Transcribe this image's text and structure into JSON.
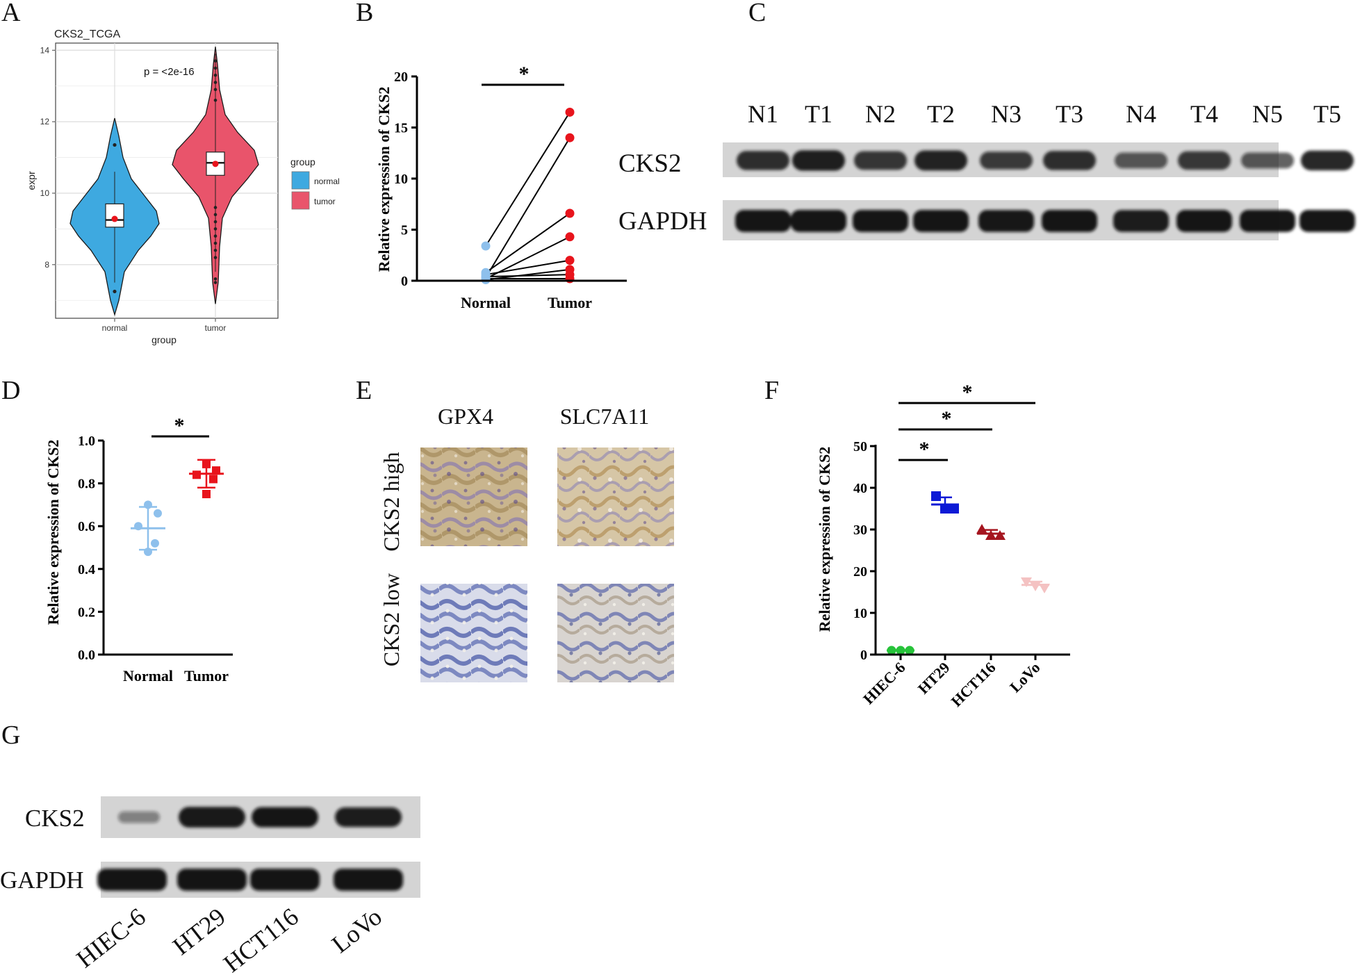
{
  "panels": {
    "A": "A",
    "B": "B",
    "C": "C",
    "D": "D",
    "E": "E",
    "F": "F",
    "G": "G"
  },
  "chart_data": [
    {
      "panel": "A",
      "type": "violin",
      "title": "CKS2_TCGA",
      "annotation": "p = <2e-16",
      "xlabel": "group",
      "ylabel": "expr",
      "ylim": [
        6.5,
        14.2
      ],
      "yticks": [
        8,
        10,
        12,
        14
      ],
      "categories": [
        "normal",
        "tumor"
      ],
      "legend": {
        "title": "group",
        "entries": [
          "normal",
          "tumor"
        ],
        "position": "right"
      },
      "colors": {
        "normal": "#3ea9e0",
        "tumor": "#e9546b"
      },
      "grid": true,
      "series": [
        {
          "name": "normal",
          "q1": 9.05,
          "median": 9.25,
          "q3": 9.7,
          "mean": 9.28,
          "min": 6.6,
          "max": 12.1,
          "outliers": [
            11.35,
            7.25
          ]
        },
        {
          "name": "tumor",
          "q1": 10.5,
          "median": 10.85,
          "q3": 11.15,
          "mean": 10.82,
          "min": 6.9,
          "max": 14.1
        }
      ]
    },
    {
      "panel": "B",
      "type": "paired-scatter",
      "ylabel": "Relative expression of CKS2",
      "ylim": [
        0,
        20
      ],
      "yticks": [
        0,
        5,
        10,
        15,
        20
      ],
      "categories": [
        "Normal",
        "Tumor"
      ],
      "significance": "*",
      "colors": {
        "Normal": "#8ec0ec",
        "Tumor": "#e8141c"
      },
      "pairs": [
        [
          3.4,
          16.5
        ],
        [
          0.3,
          14.0
        ],
        [
          0.8,
          6.6
        ],
        [
          0.2,
          4.3
        ],
        [
          0.6,
          2.0
        ],
        [
          0.1,
          1.1
        ],
        [
          0.4,
          0.6
        ],
        [
          0.2,
          0.2
        ]
      ]
    },
    {
      "panel": "D",
      "type": "scatter",
      "ylabel": "Relative expression of CKS2",
      "ylim": [
        0,
        1.0
      ],
      "yticks": [
        "0.0",
        "0.2",
        "0.4",
        "0.6",
        "0.8",
        "1.0"
      ],
      "categories": [
        "Normal",
        "Tumor"
      ],
      "significance": "*",
      "colors": {
        "Normal": "#8ec0ec",
        "Tumor": "#e8141c"
      },
      "series": [
        {
          "name": "Normal",
          "values": [
            0.7,
            0.66,
            0.6,
            0.52,
            0.48
          ],
          "mean": 0.59,
          "sd": 0.1
        },
        {
          "name": "Tumor",
          "values": [
            0.89,
            0.86,
            0.84,
            0.82,
            0.75
          ],
          "mean": 0.845,
          "sd": 0.065
        }
      ]
    },
    {
      "panel": "F",
      "type": "scatter",
      "ylabel": "Relative expression of CKS2",
      "ylim": [
        0,
        50
      ],
      "yticks": [
        0,
        10,
        20,
        30,
        40,
        50
      ],
      "categories": [
        "HIEC-6",
        "HT29",
        "HCT116",
        "LoVo"
      ],
      "significance": [
        "*",
        "*",
        "*"
      ],
      "series": [
        {
          "name": "HIEC-6",
          "values": [
            1,
            1,
            1
          ],
          "mean": 1,
          "sd": 0.1,
          "color": "#27c33a",
          "marker": "circle"
        },
        {
          "name": "HT29",
          "values": [
            38,
            35,
            35
          ],
          "mean": 36,
          "sd": 1.7,
          "color": "#0c1ad6",
          "marker": "square"
        },
        {
          "name": "HCT116",
          "values": [
            30,
            28.5,
            28.5
          ],
          "mean": 29,
          "sd": 0.9,
          "color": "#a5151f",
          "marker": "triangle"
        },
        {
          "name": "LoVo",
          "values": [
            17.5,
            16.5,
            16
          ],
          "mean": 16.7,
          "sd": 0.8,
          "color": "#f4c2c2",
          "marker": "triangle-down"
        }
      ]
    }
  ],
  "blot_C": {
    "lanes": [
      "N1",
      "T1",
      "N2",
      "T2",
      "N3",
      "T3",
      "N4",
      "T4",
      "N5",
      "T5"
    ],
    "rows": [
      "CKS2",
      "GAPDH"
    ],
    "intensity": {
      "CKS2": [
        0.85,
        0.95,
        0.8,
        0.92,
        0.72,
        0.85,
        0.55,
        0.78,
        0.55,
        0.9
      ],
      "GAPDH": [
        0.95,
        0.95,
        0.95,
        0.95,
        0.93,
        0.95,
        0.9,
        0.95,
        0.95,
        0.95
      ]
    }
  },
  "panel_E": {
    "columns": [
      "GPX4",
      "SLC7A11"
    ],
    "rows": [
      "CKS2  high",
      "CKS2 low"
    ]
  },
  "blot_G": {
    "lanes": [
      "HIEC-6",
      "HT29",
      "HCT116",
      "LoVo"
    ],
    "rows": [
      "CKS2",
      "GAPDH"
    ],
    "intensity": {
      "CKS2": [
        0.25,
        0.98,
        0.95,
        0.9
      ],
      "GAPDH": [
        0.95,
        0.95,
        0.95,
        0.95
      ]
    }
  }
}
